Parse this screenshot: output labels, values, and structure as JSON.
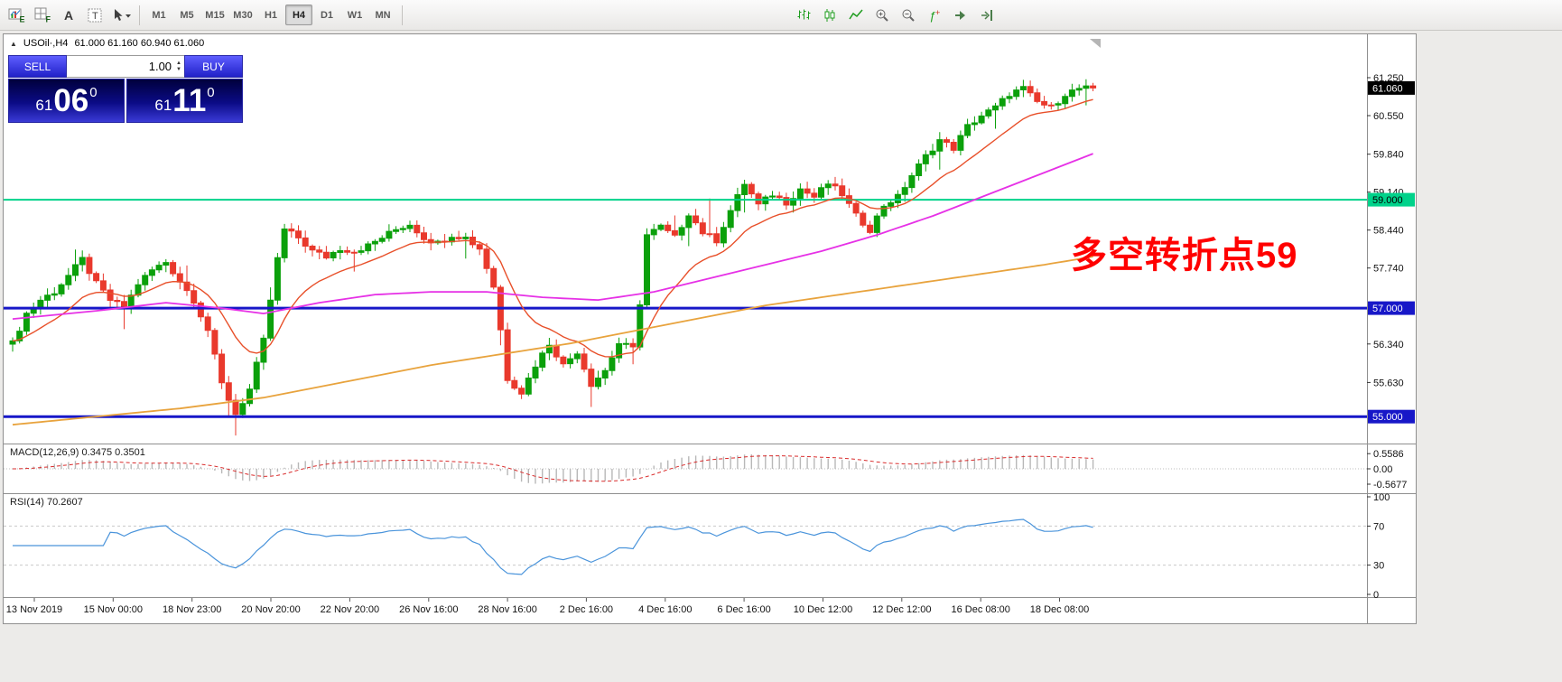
{
  "toolbar": {
    "left_icons": [
      {
        "name": "expert-advisors-icon",
        "letter": "E"
      },
      {
        "name": "profiles-icon",
        "letter": "F"
      },
      {
        "name": "text-label-icon",
        "letter": "A"
      },
      {
        "name": "text-tool-icon",
        "letter": "T"
      },
      {
        "name": "cursor-tool-icon",
        "letter": ""
      }
    ],
    "timeframes": [
      {
        "label": "M1"
      },
      {
        "label": "M5"
      },
      {
        "label": "M15"
      },
      {
        "label": "M30"
      },
      {
        "label": "H1"
      },
      {
        "label": "H4",
        "active": true
      },
      {
        "label": "D1"
      },
      {
        "label": "W1"
      },
      {
        "label": "MN"
      }
    ],
    "chart_type_icons": [
      {
        "name": "bar-chart-icon"
      },
      {
        "name": "candlestick-chart-icon"
      },
      {
        "name": "line-chart-icon"
      },
      {
        "name": "zoom-in-icon"
      },
      {
        "name": "zoom-out-icon"
      },
      {
        "name": "indicators-icon"
      },
      {
        "name": "auto-scroll-icon"
      },
      {
        "name": "chart-shift-icon"
      }
    ]
  },
  "chart_header": {
    "collapse_icon": "▲",
    "symbol": "USOil·,H4",
    "ohlc": "61.000 61.160 60.940 61.060"
  },
  "trade_panel": {
    "sell_label": "SELL",
    "buy_label": "BUY",
    "volume": "1.00",
    "spinner_up": "▲",
    "spinner_down": "▼",
    "sell_price": {
      "small": "61",
      "big": "06",
      "pip": "0"
    },
    "buy_price": {
      "small": "61",
      "big": "11",
      "pip": "0"
    }
  },
  "annotation": {
    "text": "多空转折点59",
    "color": "#ff0000"
  },
  "chart_data": {
    "type": "candlestick",
    "title": "USOil H4",
    "ohlc_current": {
      "open": 61.0,
      "high": 61.16,
      "low": 60.94,
      "close": 61.06
    },
    "y_domain": [
      54.52,
      62.05
    ],
    "y_ticks": [
      "61.250",
      "60.550",
      "59.840",
      "59.140",
      "58.440",
      "57.740",
      "56.340",
      "55.630"
    ],
    "y_tick_values": [
      61.25,
      60.55,
      59.84,
      59.14,
      58.44,
      57.74,
      56.34,
      55.63
    ],
    "x_labels": [
      "13 Nov 2019",
      "15 Nov 00:00",
      "18 Nov 23:00",
      "20 Nov 20:00",
      "22 Nov 20:00",
      "26 Nov 16:00",
      "28 Nov 16:00",
      "2 Dec 16:00",
      "4 Dec 16:00",
      "6 Dec 16:00",
      "10 Dec 12:00",
      "12 Dec 12:00",
      "16 Dec 08:00",
      "18 Dec 08:00"
    ],
    "candle_count": 156,
    "price_keyframes": [
      [
        0,
        56.35
      ],
      [
        2,
        56.9
      ],
      [
        4,
        57.15
      ],
      [
        6,
        57.3
      ],
      [
        8,
        57.6
      ],
      [
        10,
        57.9
      ],
      [
        12,
        57.45
      ],
      [
        14,
        57.15
      ],
      [
        16,
        57.0
      ],
      [
        18,
        57.45
      ],
      [
        20,
        57.7
      ],
      [
        22,
        57.85
      ],
      [
        24,
        57.5
      ],
      [
        26,
        57.15
      ],
      [
        28,
        56.6
      ],
      [
        30,
        55.6
      ],
      [
        32,
        55.05
      ],
      [
        34,
        55.5
      ],
      [
        36,
        56.4
      ],
      [
        38,
        57.9
      ],
      [
        39,
        58.45
      ],
      [
        41,
        58.3
      ],
      [
        43,
        58.05
      ],
      [
        45,
        57.95
      ],
      [
        47,
        58.1
      ],
      [
        49,
        58.05
      ],
      [
        51,
        58.15
      ],
      [
        53,
        58.3
      ],
      [
        55,
        58.45
      ],
      [
        57,
        58.55
      ],
      [
        59,
        58.3
      ],
      [
        61,
        58.2
      ],
      [
        63,
        58.35
      ],
      [
        65,
        58.3
      ],
      [
        67,
        58.1
      ],
      [
        69,
        57.4
      ],
      [
        70,
        56.6
      ],
      [
        71,
        55.7
      ],
      [
        73,
        55.45
      ],
      [
        75,
        55.95
      ],
      [
        77,
        56.35
      ],
      [
        79,
        55.95
      ],
      [
        81,
        56.2
      ],
      [
        83,
        55.6
      ],
      [
        85,
        55.85
      ],
      [
        87,
        56.35
      ],
      [
        89,
        56.25
      ],
      [
        90,
        57.1
      ],
      [
        91,
        58.35
      ],
      [
        93,
        58.5
      ],
      [
        95,
        58.3
      ],
      [
        97,
        58.75
      ],
      [
        99,
        58.4
      ],
      [
        101,
        58.25
      ],
      [
        103,
        58.8
      ],
      [
        105,
        59.3
      ],
      [
        107,
        58.9
      ],
      [
        109,
        59.1
      ],
      [
        111,
        58.95
      ],
      [
        113,
        59.2
      ],
      [
        115,
        59.05
      ],
      [
        117,
        59.3
      ],
      [
        119,
        59.1
      ],
      [
        121,
        58.7
      ],
      [
        123,
        58.45
      ],
      [
        125,
        58.9
      ],
      [
        127,
        59.05
      ],
      [
        129,
        59.45
      ],
      [
        131,
        59.8
      ],
      [
        133,
        60.1
      ],
      [
        135,
        59.95
      ],
      [
        137,
        60.35
      ],
      [
        139,
        60.55
      ],
      [
        141,
        60.7
      ],
      [
        143,
        60.95
      ],
      [
        145,
        61.05
      ],
      [
        147,
        60.8
      ],
      [
        149,
        60.7
      ],
      [
        151,
        60.95
      ],
      [
        153,
        61.05
      ],
      [
        155,
        61.06
      ]
    ],
    "spikes": [
      {
        "i": 32,
        "down": 0.35
      },
      {
        "i": 37,
        "up": 0.15
      },
      {
        "i": 70,
        "down": 0.2
      },
      {
        "i": 100,
        "up": 0.55
      }
    ],
    "colors": {
      "up": "#0ba00b",
      "down": "#e9392c",
      "ma_fast": "#e8502a",
      "ma_med": "#e631e6",
      "ma_slow": "#e8a33d",
      "macd_hist": "#b8b8b8",
      "macd_signal": "#d92b2b",
      "rsi": "#4a94db"
    },
    "ma_fast_period": 14,
    "ma_med_keyframes": [
      [
        0,
        56.8
      ],
      [
        12,
        56.95
      ],
      [
        22,
        57.1
      ],
      [
        30,
        57.0
      ],
      [
        36,
        56.9
      ],
      [
        44,
        57.1
      ],
      [
        52,
        57.25
      ],
      [
        60,
        57.3
      ],
      [
        68,
        57.3
      ],
      [
        76,
        57.2
      ],
      [
        84,
        57.15
      ],
      [
        92,
        57.3
      ],
      [
        100,
        57.55
      ],
      [
        108,
        57.8
      ],
      [
        116,
        58.05
      ],
      [
        124,
        58.35
      ],
      [
        132,
        58.7
      ],
      [
        140,
        59.1
      ],
      [
        148,
        59.5
      ],
      [
        155,
        59.85
      ]
    ],
    "ma_slow_keyframes": [
      [
        0,
        54.85
      ],
      [
        12,
        55.0
      ],
      [
        24,
        55.15
      ],
      [
        36,
        55.35
      ],
      [
        48,
        55.65
      ],
      [
        60,
        55.95
      ],
      [
        70,
        56.15
      ],
      [
        80,
        56.35
      ],
      [
        90,
        56.6
      ],
      [
        100,
        56.85
      ],
      [
        108,
        57.05
      ],
      [
        116,
        57.2
      ],
      [
        124,
        57.35
      ],
      [
        132,
        57.5
      ],
      [
        140,
        57.65
      ],
      [
        148,
        57.8
      ],
      [
        155,
        57.95
      ]
    ],
    "hlines": [
      {
        "price": 59.0,
        "color": "#00d28a",
        "width": 2,
        "badge": "59.000",
        "badge_text": "#000000"
      },
      {
        "price": 57.0,
        "color": "#1717c8",
        "width": 3,
        "badge": "57.000",
        "badge_text": "#ffffff"
      },
      {
        "price": 55.0,
        "color": "#1717c8",
        "width": 3,
        "badge": "55.000",
        "badge_text": "#ffffff"
      }
    ],
    "current_price": {
      "label": "61.060",
      "value": 61.06,
      "badge_bg": "#000000",
      "badge_text": "#ffffff"
    },
    "macd": {
      "label": "MACD(12,26,9) 0.3475 0.3501",
      "fast": 12,
      "slow": 26,
      "signal": 9,
      "scale_labels": [
        "0.5586",
        "0.00",
        "-0.5677"
      ],
      "scale_values": [
        0.5586,
        0,
        -0.5677
      ]
    },
    "rsi": {
      "label": "RSI(14) 70.2607",
      "period": 14,
      "levels": [
        70,
        30
      ],
      "scale_labels": [
        "100",
        "70",
        "30",
        "0"
      ],
      "scale_values": [
        100,
        70,
        30,
        0
      ]
    }
  }
}
